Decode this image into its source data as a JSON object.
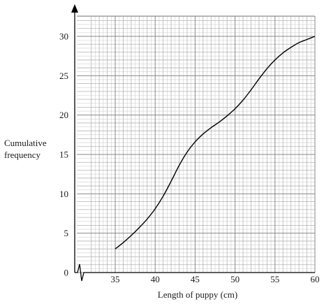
{
  "chart_data": {
    "type": "line",
    "title": "",
    "xlabel": "Length of puppy (cm)",
    "ylabel_lines": [
      "Cumulative",
      "frequency"
    ],
    "xlim": [
      32,
      60
    ],
    "ylim": [
      0,
      32.5
    ],
    "x_ticks": [
      35,
      40,
      45,
      50,
      55,
      60
    ],
    "y_ticks": [
      0,
      5,
      10,
      15,
      20,
      25,
      30
    ],
    "grid": true,
    "axis_break": "zigzag on x-axis near origin",
    "series": [
      {
        "x": [
          35,
          36,
          37,
          38,
          39,
          40,
          41,
          42,
          43,
          44,
          45,
          46,
          47,
          48,
          49,
          50,
          51,
          52,
          53,
          54,
          55,
          56,
          57,
          58,
          59,
          60
        ],
        "y": [
          3,
          3.8,
          4.7,
          5.7,
          6.8,
          8.1,
          9.7,
          11.6,
          13.6,
          15.3,
          16.6,
          17.6,
          18.4,
          19.1,
          19.9,
          20.8,
          21.9,
          23.2,
          24.6,
          25.9,
          27,
          27.9,
          28.6,
          29.2,
          29.6,
          30
        ]
      }
    ]
  }
}
